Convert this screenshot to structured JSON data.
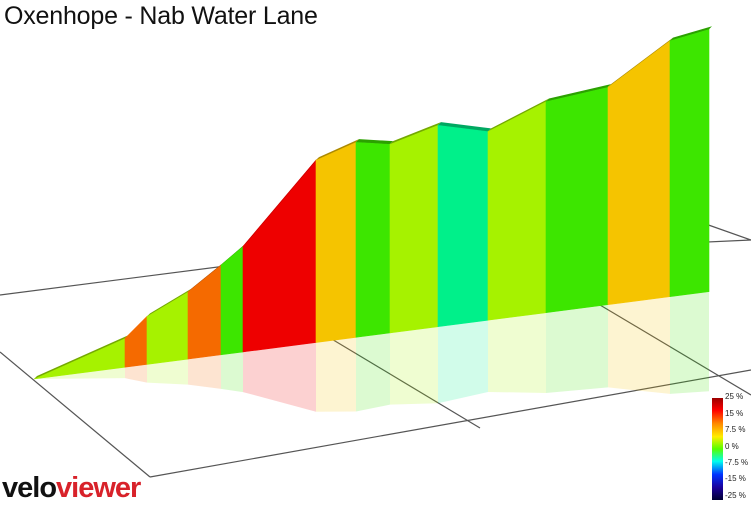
{
  "title": "Oxenhope - Nab Water Lane",
  "logo": {
    "part1": "velo",
    "part2": "viewer"
  },
  "scale_labels": [
    "25 %",
    "15 %",
    "7.5 %",
    "0 %",
    "-7.5 %",
    "-15 %",
    "-25 %"
  ],
  "colors": {
    "red": "#ee0000",
    "orange": "#f56a00",
    "amber": "#f5c400",
    "yellow_green": "#a6f200",
    "green": "#3de600",
    "mint": "#00f08a",
    "background": "#ffffff"
  },
  "chart_data": {
    "type": "area",
    "view": "3d-perspective",
    "xlabel": "",
    "ylabel": "",
    "legend": "none",
    "series": [
      {
        "segments": [
          {
            "elev": 0,
            "grade_color": "yellow_green"
          },
          {
            "elev": 9,
            "grade_color": "orange"
          },
          {
            "elev": 15,
            "grade_color": "yellow_green"
          },
          {
            "elev": 21,
            "grade_color": "orange"
          },
          {
            "elev": 28,
            "grade_color": "green"
          },
          {
            "elev": 33,
            "grade_color": "red"
          },
          {
            "elev": 57,
            "grade_color": "amber"
          },
          {
            "elev": 61,
            "grade_color": "green"
          },
          {
            "elev": 59,
            "grade_color": "yellow_green"
          },
          {
            "elev": 63,
            "grade_color": "mint"
          },
          {
            "elev": 59,
            "grade_color": "yellow_green"
          },
          {
            "elev": 66,
            "grade_color": "green"
          },
          {
            "elev": 68,
            "grade_color": "amber"
          },
          {
            "elev": 80,
            "grade_color": "green"
          },
          {
            "elev": 82,
            "grade_color": null
          }
        ]
      }
    ]
  }
}
